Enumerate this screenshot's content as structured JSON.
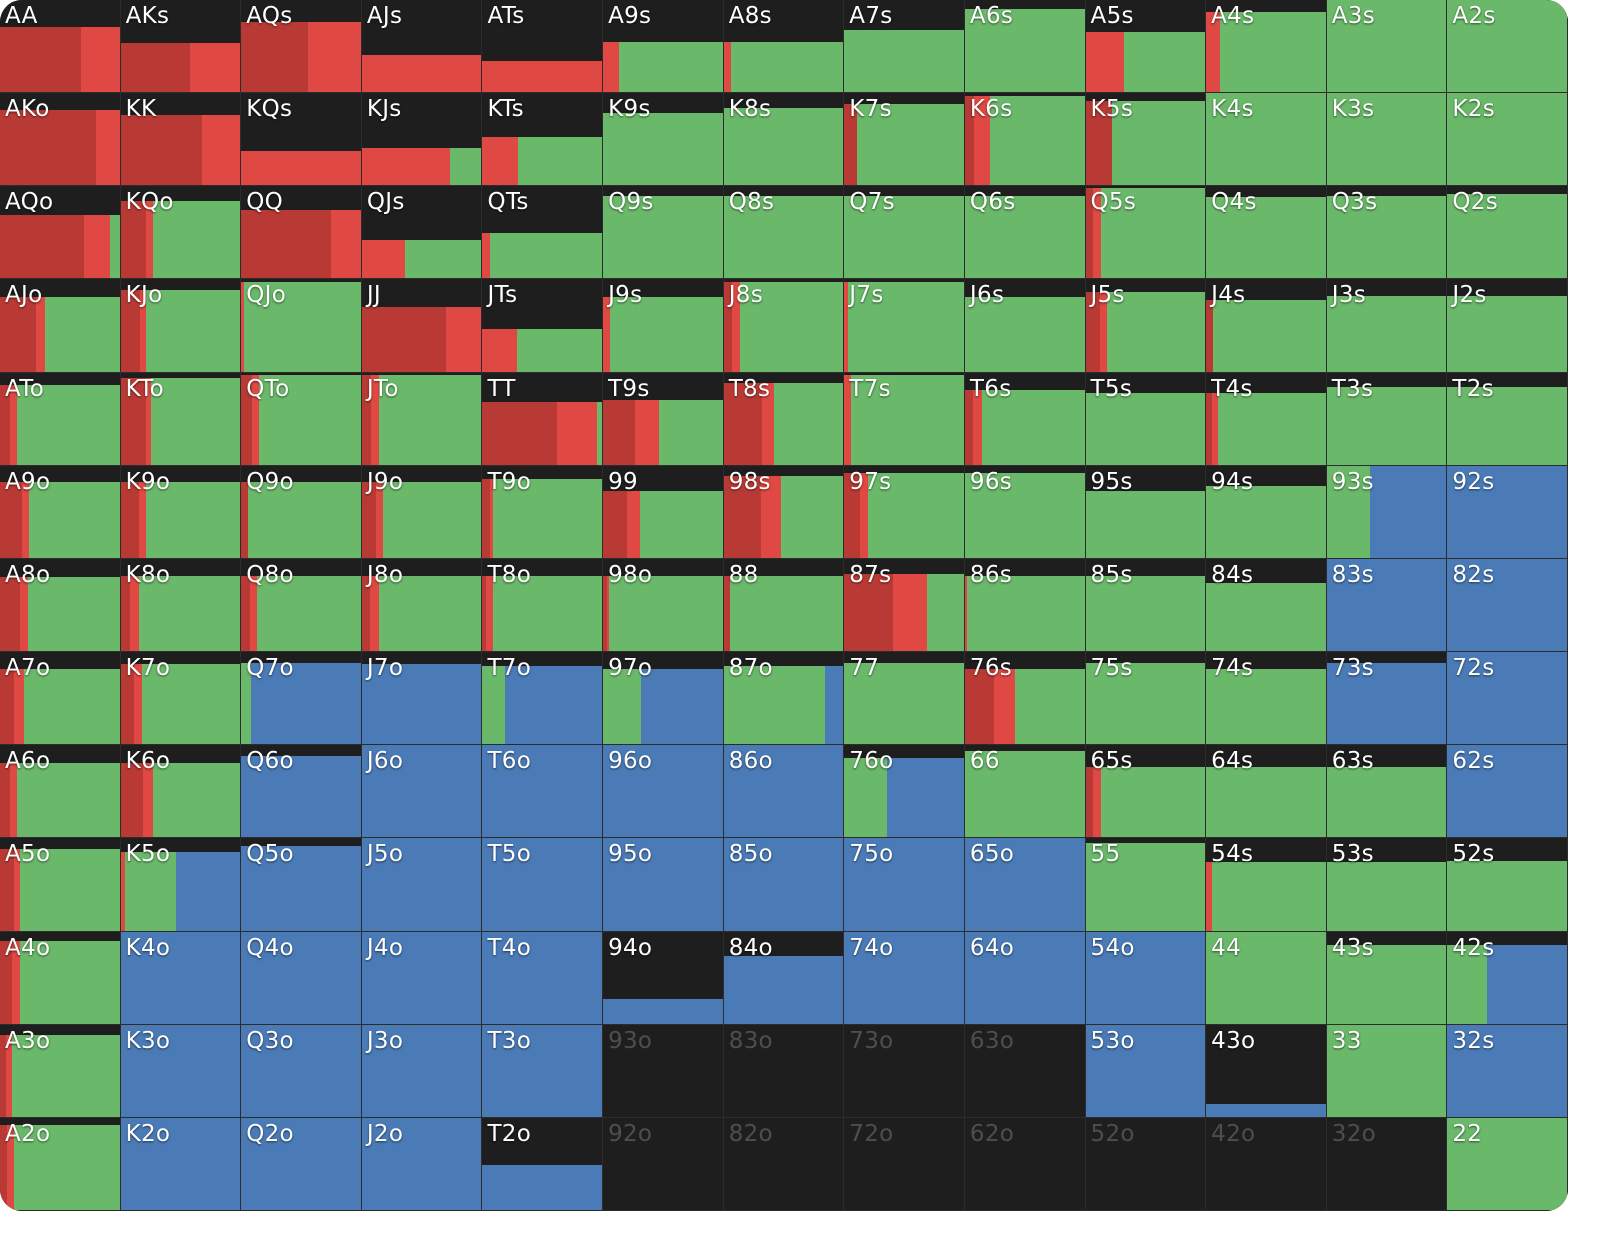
{
  "colors": {
    "dark_red": "#b93a34",
    "red": "#e04843",
    "green": "#6ab96a",
    "blue": "#4a7bb7",
    "empty": "#1e1e1e"
  },
  "legend_order": [
    "dark_red",
    "red",
    "green",
    "blue"
  ],
  "rows": [
    [
      [
        "AA",
        0.71,
        0.68,
        0.32,
        0,
        0
      ],
      [
        "AKs",
        0.53,
        0.58,
        0.42,
        0,
        0
      ],
      [
        "AQs",
        0.76,
        0.56,
        0.44,
        0,
        0
      ],
      [
        "AJs",
        0.4,
        0,
        1,
        0,
        0
      ],
      [
        "ATs",
        0.34,
        0,
        1,
        0,
        0
      ],
      [
        "A9s",
        0.54,
        0,
        0.13,
        0.87,
        0
      ],
      [
        "A8s",
        0.54,
        0,
        0.06,
        0.94,
        0
      ],
      [
        "A7s",
        0.68,
        0,
        0,
        1,
        0
      ],
      [
        "A6s",
        0.9,
        0,
        0,
        1,
        0
      ],
      [
        "A5s",
        0.65,
        0,
        0.32,
        0.68,
        0
      ],
      [
        "A4s",
        0.87,
        0,
        0.12,
        0.88,
        0
      ],
      [
        "A3s",
        1,
        0,
        0,
        1,
        0
      ],
      [
        "A2s",
        1,
        0,
        0,
        1,
        0
      ]
    ],
    [
      [
        "AKo",
        0.82,
        0.8,
        0.2,
        0,
        0
      ],
      [
        "KK",
        0.76,
        0.68,
        0.32,
        0,
        0
      ],
      [
        "KQs",
        0.37,
        0,
        1,
        0,
        0
      ],
      [
        "KJs",
        0.41,
        0,
        0.74,
        0.26,
        0
      ],
      [
        "KTs",
        0.52,
        0,
        0.3,
        0.7,
        0
      ],
      [
        "K9s",
        0.78,
        0,
        0,
        1,
        0
      ],
      [
        "K8s",
        0.84,
        0,
        0,
        1,
        0
      ],
      [
        "K7s",
        0.88,
        0.11,
        0,
        0.89,
        0
      ],
      [
        "K6s",
        0.97,
        0.08,
        0.13,
        0.79,
        0
      ],
      [
        "K5s",
        0.92,
        0.22,
        0,
        0.78,
        0
      ],
      [
        "K4s",
        1,
        0,
        0,
        1,
        0
      ],
      [
        "K3s",
        1,
        0,
        0,
        1,
        0
      ],
      [
        "K2s",
        1,
        0,
        0,
        1,
        0
      ]
    ],
    [
      [
        "AQo",
        0.69,
        0.7,
        0.22,
        0.08,
        0
      ],
      [
        "KQo",
        0.84,
        0.21,
        0.06,
        0.73,
        0
      ],
      [
        "QQ",
        0.74,
        0.75,
        0.25,
        0,
        0
      ],
      [
        "QJs",
        0.42,
        0,
        0.36,
        0.64,
        0
      ],
      [
        "QTs",
        0.49,
        0,
        0.06,
        0.94,
        0
      ],
      [
        "Q9s",
        0.9,
        0,
        0,
        1,
        0
      ],
      [
        "Q8s",
        0.9,
        0,
        0,
        1,
        0
      ],
      [
        "Q7s",
        0.9,
        0,
        0,
        1,
        0
      ],
      [
        "Q6s",
        0.9,
        0,
        0,
        1,
        0
      ],
      [
        "Q5s",
        0.98,
        0.06,
        0.07,
        0.87,
        0
      ],
      [
        "Q4s",
        0.88,
        0,
        0,
        1,
        0
      ],
      [
        "Q3s",
        0.9,
        0,
        0,
        1,
        0
      ],
      [
        "Q2s",
        0.92,
        0,
        0,
        1,
        0
      ]
    ],
    [
      [
        "AJo",
        0.81,
        0.3,
        0.08,
        0.62,
        0
      ],
      [
        "KJo",
        0.89,
        0.16,
        0.05,
        0.79,
        0
      ],
      [
        "QJo",
        0.97,
        0,
        0.02,
        0.98,
        0
      ],
      [
        "JJ",
        0.7,
        0.7,
        0.3,
        0,
        0
      ],
      [
        "JTs",
        0.46,
        0,
        0.29,
        0.71,
        0
      ],
      [
        "J9s",
        0.81,
        0,
        0.06,
        0.94,
        0
      ],
      [
        "J8s",
        0.97,
        0.07,
        0.07,
        0.86,
        0
      ],
      [
        "J7s",
        0.97,
        0,
        0.03,
        0.97,
        0
      ],
      [
        "J6s",
        0.81,
        0,
        0,
        1,
        0
      ],
      [
        "J5s",
        0.86,
        0.12,
        0.06,
        0.82,
        0
      ],
      [
        "J4s",
        0.78,
        0.06,
        0,
        0.94,
        0
      ],
      [
        "J3s",
        0.82,
        0,
        0,
        1,
        0
      ],
      [
        "J2s",
        0.82,
        0,
        0,
        1,
        0
      ]
    ],
    [
      [
        "ATo",
        0.87,
        0.08,
        0.06,
        0.86,
        0
      ],
      [
        "KTo",
        0.94,
        0.21,
        0.04,
        0.75,
        0
      ],
      [
        "QTo",
        0.97,
        0.09,
        0.06,
        0.85,
        0
      ],
      [
        "JTo",
        0.97,
        0.08,
        0.06,
        0.86,
        0
      ],
      [
        "TT",
        0.68,
        0.62,
        0.34,
        0.04,
        0
      ],
      [
        "T9s",
        0.7,
        0.27,
        0.2,
        0.53,
        0
      ],
      [
        "T8s",
        0.89,
        0.32,
        0.1,
        0.58,
        0
      ],
      [
        "T7s",
        0.97,
        0,
        0.06,
        0.94,
        0
      ],
      [
        "T6s",
        0.81,
        0.07,
        0.07,
        0.86,
        0
      ],
      [
        "T5s",
        0.78,
        0,
        0,
        1,
        0
      ],
      [
        "T4s",
        0.78,
        0.05,
        0.05,
        0.9,
        0
      ],
      [
        "T3s",
        0.84,
        0,
        0,
        1,
        0
      ],
      [
        "T2s",
        0.84,
        0,
        0,
        1,
        0
      ]
    ],
    [
      [
        "A9o",
        0.82,
        0.18,
        0.06,
        0.76,
        0
      ],
      [
        "K9o",
        0.82,
        0.15,
        0.06,
        0.79,
        0
      ],
      [
        "Q9o",
        0.82,
        0.06,
        0,
        0.94,
        0
      ],
      [
        "J9o",
        0.82,
        0.12,
        0.06,
        0.82,
        0
      ],
      [
        "T9o",
        0.86,
        0.06,
        0.03,
        0.91,
        0
      ],
      [
        "99",
        0.73,
        0.2,
        0.11,
        0.69,
        0
      ],
      [
        "98s",
        0.89,
        0.31,
        0.17,
        0.52,
        0
      ],
      [
        "97s",
        0.92,
        0.13,
        0.07,
        0.8,
        0
      ],
      [
        "96s",
        0.92,
        0,
        0,
        1,
        0
      ],
      [
        "95s",
        0.73,
        0,
        0,
        1,
        0
      ],
      [
        "94s",
        0.78,
        0,
        0,
        1,
        0
      ],
      [
        "93s",
        1,
        0,
        0,
        0.36,
        0.64
      ],
      [
        "92s",
        1,
        0,
        0,
        0,
        1
      ]
    ],
    [
      [
        "A8o",
        0.8,
        0.17,
        0.06,
        0.77,
        0
      ],
      [
        "K8o",
        0.81,
        0.08,
        0.07,
        0.85,
        0
      ],
      [
        "Q8o",
        0.81,
        0.07,
        0.06,
        0.87,
        0
      ],
      [
        "J8o",
        0.81,
        0.07,
        0.07,
        0.86,
        0
      ],
      [
        "T8o",
        0.81,
        0.03,
        0.06,
        0.91,
        0
      ],
      [
        "98o",
        0.81,
        0.03,
        0.02,
        0.95,
        0
      ],
      [
        "88",
        0.81,
        0.05,
        0,
        0.95,
        0
      ],
      [
        "87s",
        0.84,
        0.41,
        0.28,
        0.31,
        0
      ],
      [
        "86s",
        0.81,
        0,
        0.02,
        0.98,
        0
      ],
      [
        "85s",
        0.81,
        0,
        0,
        1,
        0
      ],
      [
        "84s",
        0.74,
        0,
        0,
        1,
        0
      ],
      [
        "83s",
        1,
        0,
        0,
        0,
        1
      ],
      [
        "82s",
        1,
        0,
        0,
        0,
        1
      ]
    ],
    [
      [
        "A7o",
        0.82,
        0.12,
        0.08,
        0.8,
        0
      ],
      [
        "K7o",
        0.87,
        0.11,
        0.07,
        0.82,
        0
      ],
      [
        "Q7o",
        0.88,
        0,
        0,
        0.08,
        0.92
      ],
      [
        "J7o",
        0.87,
        0,
        0,
        0,
        1
      ],
      [
        "T7o",
        0.85,
        0,
        0,
        0.19,
        0.81
      ],
      [
        "97o",
        0.82,
        0,
        0,
        0.32,
        0.68
      ],
      [
        "87o",
        0.85,
        0,
        0,
        0.85,
        0.15
      ],
      [
        "77",
        0.88,
        0,
        0,
        1,
        0
      ],
      [
        "76s",
        0.82,
        0.24,
        0.18,
        0.58,
        0
      ],
      [
        "75s",
        0.88,
        0,
        0,
        1,
        0
      ],
      [
        "74s",
        0.82,
        0,
        0,
        1,
        0
      ],
      [
        "73s",
        0.88,
        0,
        0,
        0,
        1
      ],
      [
        "72s",
        1,
        0,
        0,
        0,
        1
      ]
    ],
    [
      [
        "A6o",
        0.81,
        0.08,
        0.06,
        0.86,
        0
      ],
      [
        "K6o",
        0.81,
        0.19,
        0.08,
        0.73,
        0
      ],
      [
        "Q6o",
        0.88,
        0,
        0,
        0,
        1
      ],
      [
        "J6o",
        1,
        0,
        0,
        0,
        1
      ],
      [
        "T6o",
        1,
        0,
        0,
        0,
        1
      ],
      [
        "96o",
        1,
        0,
        0,
        0,
        1
      ],
      [
        "86o",
        1,
        0,
        0,
        0,
        1
      ],
      [
        "76o",
        0.86,
        0,
        0,
        0.36,
        0.64
      ],
      [
        "66",
        0.94,
        0,
        0,
        1,
        0
      ],
      [
        "65s",
        0.76,
        0.06,
        0.07,
        0.87,
        0
      ],
      [
        "64s",
        0.76,
        0,
        0,
        1,
        0
      ],
      [
        "63s",
        0.76,
        0,
        0,
        1,
        0
      ],
      [
        "62s",
        1,
        0,
        0,
        0,
        1
      ]
    ],
    [
      [
        "A5o",
        0.89,
        0.12,
        0.05,
        0.83,
        0
      ],
      [
        "K5o",
        0.85,
        0,
        0.04,
        0.42,
        0.54
      ],
      [
        "Q5o",
        0.92,
        0,
        0,
        0,
        1
      ],
      [
        "J5o",
        1,
        0,
        0,
        0,
        1
      ],
      [
        "T5o",
        1,
        0,
        0,
        0,
        1
      ],
      [
        "95o",
        1,
        0,
        0,
        0,
        1
      ],
      [
        "85o",
        1,
        0,
        0,
        0,
        1
      ],
      [
        "75o",
        1,
        0,
        0,
        0,
        1
      ],
      [
        "65o",
        1,
        0,
        0,
        0,
        1
      ],
      [
        "55",
        0.95,
        0,
        0,
        1,
        0
      ],
      [
        "54s",
        0.74,
        0,
        0.05,
        0.95,
        0
      ],
      [
        "53s",
        0.74,
        0,
        0,
        1,
        0
      ],
      [
        "52s",
        0.76,
        0,
        0,
        1,
        0
      ]
    ],
    [
      [
        "A4o",
        0.9,
        0.1,
        0.07,
        0.83,
        0
      ],
      [
        "K4o",
        1,
        0,
        0,
        0,
        1
      ],
      [
        "Q4o",
        1,
        0,
        0,
        0,
        1
      ],
      [
        "J4o",
        1,
        0,
        0,
        0,
        1
      ],
      [
        "T4o",
        1,
        0,
        0,
        0,
        1
      ],
      [
        "94o",
        0.27,
        0,
        0,
        0,
        1
      ],
      [
        "84o",
        0.74,
        0,
        0,
        0,
        1
      ],
      [
        "74o",
        1,
        0,
        0,
        0,
        1
      ],
      [
        "64o",
        1,
        0,
        0,
        0,
        1
      ],
      [
        "54o",
        1,
        0,
        0,
        0,
        1
      ],
      [
        "44",
        1,
        0,
        0,
        1,
        0
      ],
      [
        "43s",
        0.85,
        0,
        0,
        1,
        0
      ],
      [
        "42s",
        0.85,
        0,
        0,
        0.33,
        0.67
      ]
    ],
    [
      [
        "A3o",
        0.89,
        0.05,
        0.05,
        0.9,
        0
      ],
      [
        "K3o",
        1,
        0,
        0,
        0,
        1
      ],
      [
        "Q3o",
        1,
        0,
        0,
        0,
        1
      ],
      [
        "J3o",
        1,
        0,
        0,
        0,
        1
      ],
      [
        "T3o",
        1,
        0,
        0,
        0,
        1
      ],
      [
        "93o",
        0,
        0,
        0,
        0,
        0
      ],
      [
        "83o",
        0,
        0,
        0,
        0,
        0
      ],
      [
        "73o",
        0,
        0,
        0,
        0,
        0
      ],
      [
        "63o",
        0,
        0,
        0,
        0,
        0
      ],
      [
        "53o",
        1,
        0,
        0,
        0,
        1
      ],
      [
        "43o",
        0.14,
        0,
        0,
        0,
        1
      ],
      [
        "33",
        1,
        0,
        0,
        1,
        0
      ],
      [
        "32s",
        1,
        0,
        0,
        0,
        1
      ]
    ],
    [
      [
        "A2o",
        0.92,
        0.06,
        0.06,
        0.88,
        0
      ],
      [
        "K2o",
        1,
        0,
        0,
        0,
        1
      ],
      [
        "Q2o",
        1,
        0,
        0,
        0,
        1
      ],
      [
        "J2o",
        1,
        0,
        0,
        0,
        1
      ],
      [
        "T2o",
        0.49,
        0,
        0,
        0,
        1
      ],
      [
        "92o",
        0,
        0,
        0,
        0,
        0
      ],
      [
        "82o",
        0,
        0,
        0,
        0,
        0
      ],
      [
        "72o",
        0,
        0,
        0,
        0,
        0
      ],
      [
        "62o",
        0,
        0,
        0,
        0,
        0
      ],
      [
        "52o",
        0,
        0,
        0,
        0,
        0
      ],
      [
        "42o",
        0,
        0,
        0,
        0,
        0
      ],
      [
        "32o",
        0,
        0,
        0,
        0,
        0
      ],
      [
        "22",
        1,
        0,
        0,
        1,
        0
      ]
    ]
  ]
}
